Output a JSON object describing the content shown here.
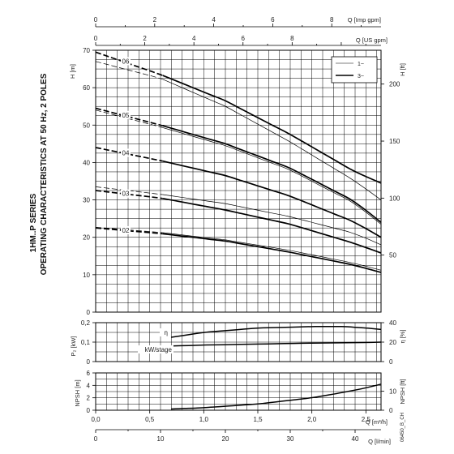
{
  "chart_data": {
    "type": "line",
    "side_title_line1": "1HM..P SERIES",
    "side_title_line2": "OPERATING CHARACTERISTICS AT 50 Hz, 2 POLES",
    "doc_code": "06450_B_CH",
    "top_axes": [
      {
        "label": "Q [Imp gpm]",
        "range": [
          0,
          9.67
        ],
        "ticks": [
          "0",
          "2",
          "4",
          "6",
          "8"
        ],
        "tick_values": [
          0,
          2,
          4,
          6,
          8
        ]
      },
      {
        "label": "Q [US gpm]",
        "range": [
          0,
          11.62
        ],
        "ticks": [
          "0",
          "2",
          "4",
          "6",
          "8",
          "10"
        ],
        "tick_values": [
          0,
          2,
          4,
          6,
          8,
          10
        ]
      }
    ],
    "bottom_axes": [
      {
        "label": "Q [m³/h]",
        "range": [
          0,
          2.64
        ],
        "ticks": [
          "0,0",
          "0,5",
          "1,0",
          "1,5",
          "2,0",
          "2,5"
        ],
        "tick_values": [
          0,
          0.5,
          1.0,
          1.5,
          2.0,
          2.5
        ]
      },
      {
        "label": "Q [l/min]",
        "range": [
          0,
          44
        ],
        "ticks": [
          "0",
          "10",
          "20",
          "30",
          "40"
        ],
        "tick_values": [
          0,
          10,
          20,
          30,
          40
        ]
      }
    ],
    "head_panel": {
      "ylabel": "H [m]",
      "ylim": [
        0,
        70
      ],
      "yticks": [
        0,
        10,
        20,
        30,
        40,
        50,
        60,
        70
      ],
      "ylabel_right": "H [ft]",
      "yticks_right": [
        50,
        100,
        150,
        200
      ],
      "legend": [
        {
          "name": "1~",
          "style": "thin"
        },
        {
          "name": "3~",
          "style": "thick"
        }
      ],
      "stage_labels": [
        "02",
        "03",
        "04",
        "05",
        "06"
      ],
      "series": [
        {
          "stage": "02",
          "phase": "3~",
          "x": [
            0.0,
            0.6,
            1.2,
            1.8,
            2.4,
            2.64
          ],
          "y": [
            22.5,
            21.0,
            19.0,
            16.0,
            12.5,
            10.6
          ]
        },
        {
          "stage": "02",
          "phase": "1~",
          "x": [
            0.0,
            0.6,
            1.2,
            1.8,
            2.4,
            2.64
          ],
          "y": [
            22.7,
            21.3,
            19.3,
            16.5,
            13.0,
            11.2
          ]
        },
        {
          "stage": "03",
          "phase": "3~",
          "x": [
            0.0,
            0.6,
            1.2,
            1.8,
            2.4,
            2.64
          ],
          "y": [
            32.5,
            30.5,
            27.3,
            23.5,
            18.3,
            15.8
          ]
        },
        {
          "stage": "03",
          "phase": "1~",
          "x": [
            0.0,
            0.6,
            1.2,
            1.8,
            2.4,
            2.64
          ],
          "y": [
            33.5,
            31.5,
            29.0,
            25.5,
            21.0,
            18.0
          ]
        },
        {
          "stage": "04",
          "phase": "3~",
          "x": [
            0.0,
            0.6,
            1.2,
            1.8,
            2.4,
            2.64
          ],
          "y": [
            44.0,
            40.5,
            36.5,
            31.0,
            24.0,
            20.0
          ]
        },
        {
          "stage": "05",
          "phase": "3~",
          "x": [
            0.0,
            0.6,
            1.2,
            1.8,
            2.4,
            2.64
          ],
          "y": [
            54.5,
            50.0,
            45.0,
            38.5,
            29.5,
            24.0
          ]
        },
        {
          "stage": "05",
          "phase": "1~",
          "x": [
            0.0,
            0.6,
            1.2,
            1.8,
            2.4,
            2.64
          ],
          "y": [
            54.0,
            49.5,
            44.5,
            38.0,
            29.0,
            23.5
          ]
        },
        {
          "stage": "06",
          "phase": "3~",
          "x": [
            0.0,
            0.6,
            1.2,
            1.8,
            2.4,
            2.64
          ],
          "y": [
            69.5,
            63.5,
            56.5,
            47.5,
            37.5,
            34.5
          ]
        },
        {
          "stage": "06",
          "phase": "1~",
          "x": [
            0.0,
            0.6,
            1.2,
            1.8,
            2.4,
            2.64
          ],
          "y": [
            67.0,
            62.5,
            55.0,
            45.5,
            35.0,
            30.0
          ]
        }
      ]
    },
    "power_panel": {
      "ylabel": "P₂ [kW]",
      "ylim": [
        0,
        0.2
      ],
      "yticks": [
        "0",
        "0,1",
        "0,2"
      ],
      "ytick_values": [
        0,
        0.1,
        0.2
      ],
      "ylabel_right": "η [%]",
      "yticks_right": [
        "0",
        "20",
        "40"
      ],
      "ytick_values_right": [
        0,
        20,
        40
      ],
      "series": [
        {
          "name": "η",
          "label": "η",
          "x": [
            0.7,
            1.0,
            1.5,
            2.0,
            2.3,
            2.5,
            2.64
          ],
          "y_percent": [
            25,
            30,
            34.5,
            36,
            36,
            34.5,
            33
          ]
        },
        {
          "name": "kW/stage",
          "label": "kW/stage",
          "x": [
            0.7,
            1.0,
            1.5,
            2.0,
            2.5,
            2.64
          ],
          "y": [
            0.08,
            0.085,
            0.09,
            0.095,
            0.098,
            0.1
          ]
        }
      ]
    },
    "npsh_panel": {
      "ylabel": "NPSH [m]",
      "ylim": [
        0,
        6
      ],
      "yticks": [
        0,
        2,
        4,
        6
      ],
      "ylabel_right": "NPSH [ft]",
      "yticks_right": [
        0,
        10
      ],
      "series": [
        {
          "name": "NPSH",
          "x": [
            0.7,
            1.0,
            1.5,
            2.0,
            2.3,
            2.5,
            2.64
          ],
          "y": [
            0.2,
            0.4,
            1.0,
            2.0,
            2.9,
            3.6,
            4.2
          ]
        }
      ]
    }
  }
}
